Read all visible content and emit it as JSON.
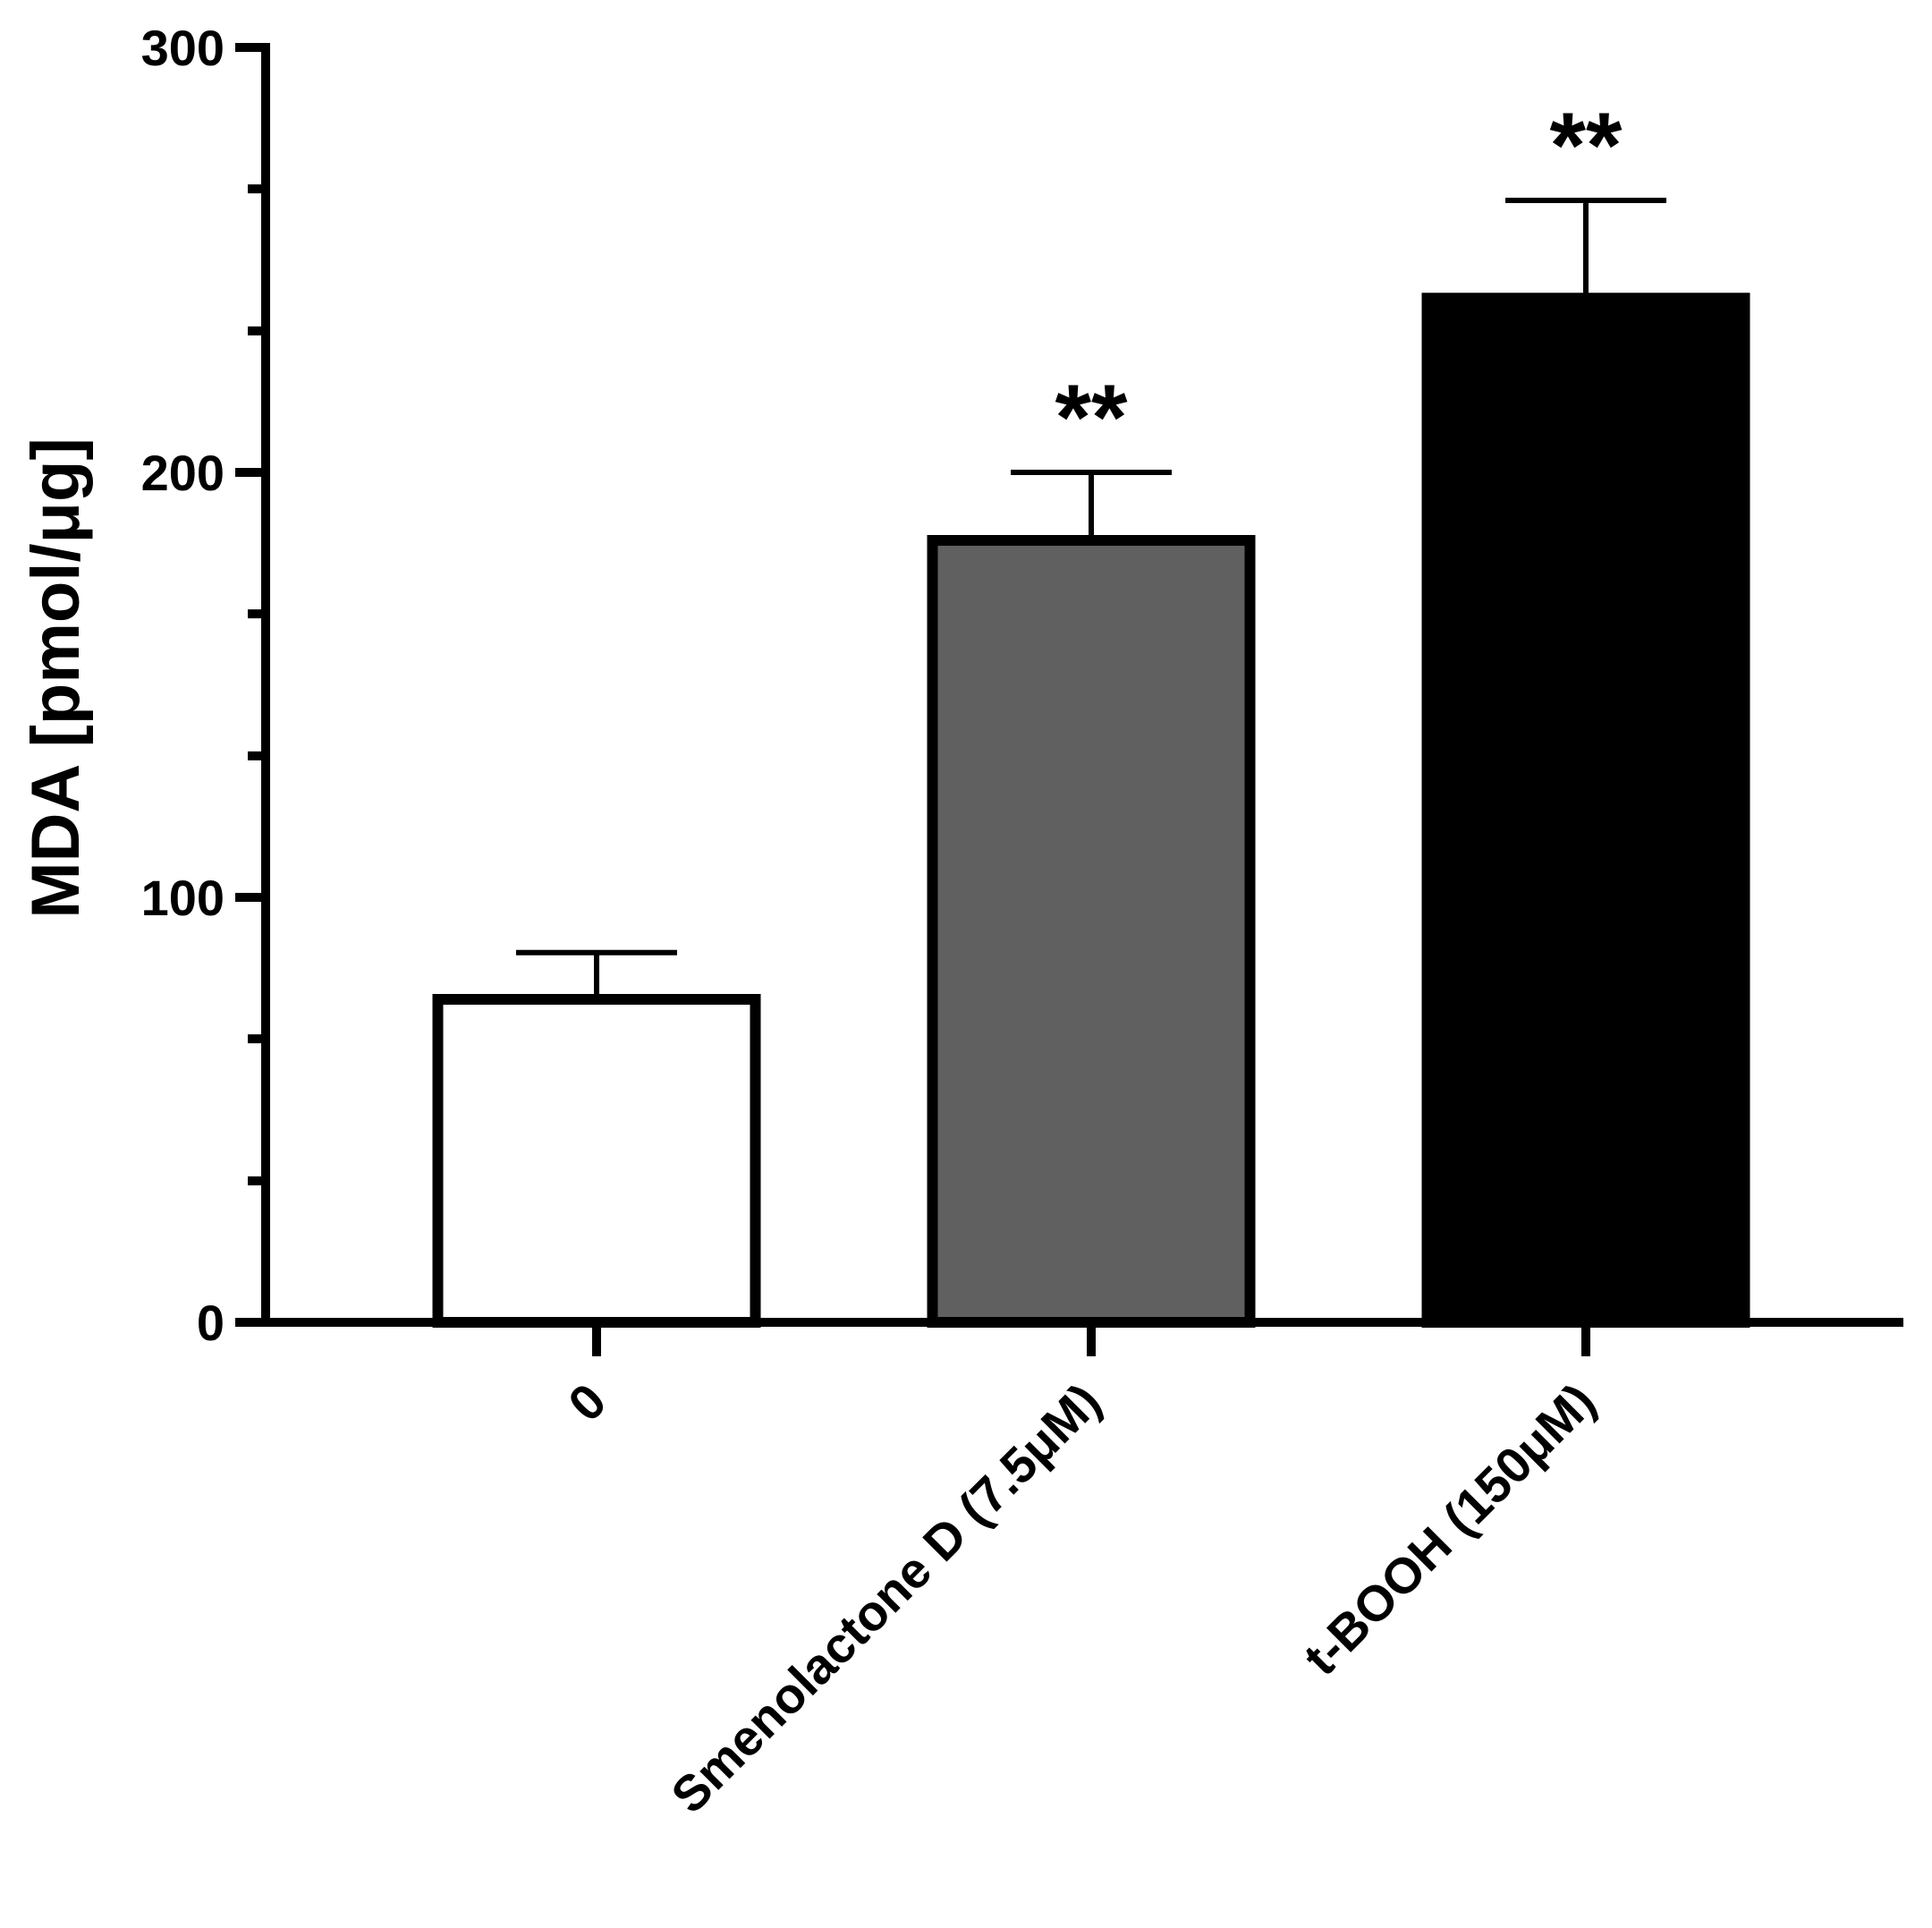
{
  "chart_data": {
    "type": "bar",
    "categories": [
      "0",
      "Smenolactone D (7.5μM)",
      "t-BOOH (150μM)"
    ],
    "values": [
      76,
      184,
      241
    ],
    "errors": [
      11,
      16,
      23
    ],
    "significance": [
      "",
      "**",
      "**"
    ],
    "bar_colors": [
      "#ffffff",
      "#606060",
      "#000000"
    ],
    "title": "",
    "xlabel": "",
    "ylabel": "MDA [pmol/μg]",
    "ylim": [
      0,
      300
    ],
    "major_ticks": [
      0,
      100,
      200,
      300
    ],
    "minor_ticks": [
      33.3,
      66.7,
      133.3,
      166.7,
      233.3,
      266.7
    ],
    "grid": false,
    "legend": "none"
  }
}
